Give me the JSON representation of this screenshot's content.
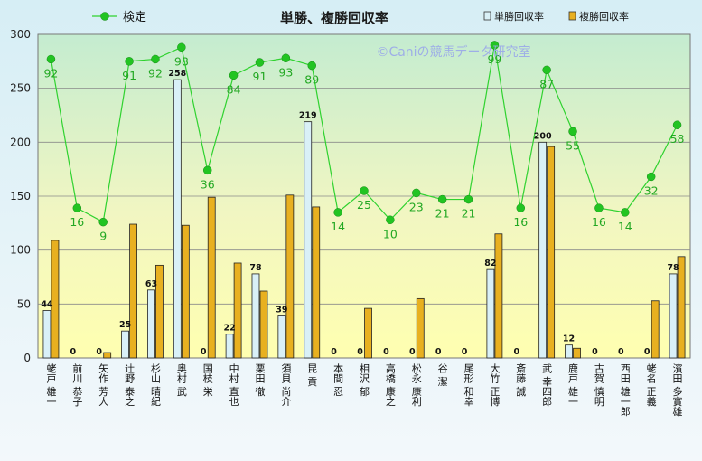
{
  "chart_data": {
    "type": "bar",
    "title": "単勝、複勝回収率",
    "watermark": "©Caniの競馬データ研究室",
    "xlabel": "",
    "ylabel": "",
    "ylim": [
      0,
      300
    ],
    "yticks": [
      0,
      50,
      100,
      150,
      200,
      250,
      300
    ],
    "grid": true,
    "legend": {
      "placement": "top",
      "entries": [
        "検定",
        "単勝回収率",
        "複勝回収率"
      ]
    },
    "categories": [
      "蛯戸 雄一",
      "前川 恭子",
      "矢作 芳人",
      "辻野 泰之",
      "杉山 晴紀",
      "奥村 武",
      "国枝 栄",
      "中村 直也",
      "栗田 徹",
      "須貝 尚介",
      "昆 貢",
      "本間 忍",
      "相沢 郁",
      "高橋 康之",
      "松永 康利",
      "谷 潔",
      "尾形 和幸",
      "大竹 正博",
      "斎藤 誠",
      "武 幸四郎",
      "鹿戸 雄一",
      "古賀 慎明",
      "西田 雄一郎",
      "蛯名 正義",
      "濱田 多實雄"
    ],
    "series": [
      {
        "name": "単勝回収率",
        "color": "#d9f0f7",
        "values": [
          44,
          0,
          0,
          25,
          63,
          258,
          0,
          22,
          78,
          39,
          219,
          0,
          0,
          0,
          0,
          0,
          0,
          82,
          0,
          200,
          12,
          0,
          0,
          0,
          78
        ],
        "labels": [
          "44",
          "0",
          "0",
          "25",
          "63",
          "258",
          "0",
          "22",
          "78",
          "39",
          "219",
          "0",
          "0",
          "0",
          "0",
          "0",
          "0",
          "82",
          "0",
          "200",
          "12",
          "0",
          "0",
          "0",
          "78"
        ]
      },
      {
        "name": "複勝回収率",
        "color": "#e8b020",
        "values": [
          109,
          0,
          5,
          124,
          86,
          123,
          149,
          88,
          62,
          151,
          140,
          0,
          46,
          0,
          55,
          0,
          0,
          115,
          0,
          196,
          9,
          0,
          0,
          53,
          94
        ]
      },
      {
        "name": "検定",
        "color": "#2fd22f",
        "values": [
          277,
          139,
          126,
          275,
          277,
          288,
          174,
          262,
          274,
          278,
          271,
          135,
          155,
          128,
          153,
          147,
          147,
          290,
          139,
          267,
          210,
          139,
          135,
          168,
          216
        ],
        "labels": [
          "92",
          "16",
          "9",
          "91",
          "92",
          "98",
          "36",
          "84",
          "91",
          "93",
          "89",
          "14",
          "25",
          "10",
          "23",
          "21",
          "21",
          "99",
          "16",
          "87",
          "55",
          "16",
          "14",
          "32",
          "58"
        ]
      }
    ]
  }
}
